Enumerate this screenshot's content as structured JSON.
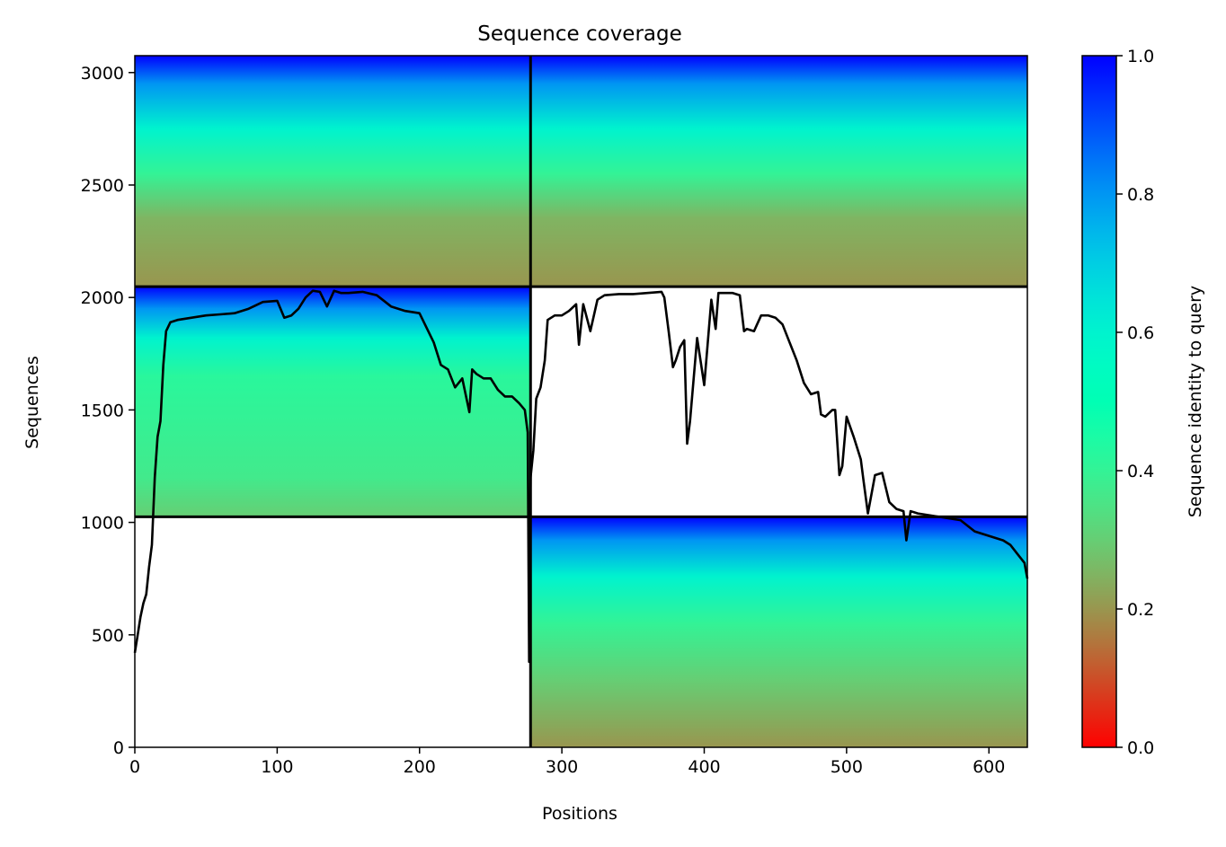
{
  "chart_data": {
    "type": "heatmap",
    "title": "Sequence coverage",
    "xlabel": "Positions",
    "ylabel": "Sequences",
    "xlim": [
      0,
      627
    ],
    "ylim": [
      0,
      3075
    ],
    "xticks": [
      0,
      100,
      200,
      300,
      400,
      500,
      600
    ],
    "yticks": [
      0,
      500,
      1000,
      1500,
      2000,
      2500,
      3000
    ],
    "grid": false,
    "colorbar": {
      "label": "Sequence identity to query",
      "colormap": "rainbow_r",
      "range": [
        0.0,
        1.0
      ],
      "ticks": [
        "0.0",
        "0.2",
        "0.4",
        "0.6",
        "0.8",
        "1.0"
      ]
    },
    "colors": {
      "identity_1.0": "#8000ff",
      "identity_0.8": "#1996f3",
      "identity_0.6": "#4df3ce",
      "identity_0.4": "#b2f396",
      "identity_0.2": "#ff964f",
      "identity_0.0": "#ff0000",
      "coverage_line": "#000000"
    },
    "chain_boundaries": {
      "vertical_at_position": 278,
      "horizontal_at_sequences": [
        1025,
        2048
      ]
    },
    "blocks": [
      {
        "x_range": [
          0,
          278
        ],
        "y_range": [
          1025,
          2048
        ],
        "identity_gradient": [
          {
            "seq": 2048,
            "identity": 1.0
          },
          {
            "seq": 1950,
            "identity": 0.8
          },
          {
            "seq": 1820,
            "identity": 0.6
          },
          {
            "seq": 1650,
            "identity": 0.42
          },
          {
            "seq": 1200,
            "identity": 0.37
          },
          {
            "seq": 1025,
            "identity": 0.3
          }
        ]
      },
      {
        "x_range": [
          278,
          627
        ],
        "y_range": [
          0,
          1025
        ],
        "identity_gradient": [
          {
            "seq": 1025,
            "identity": 1.0
          },
          {
            "seq": 920,
            "identity": 0.8
          },
          {
            "seq": 760,
            "identity": 0.6
          },
          {
            "seq": 550,
            "identity": 0.4
          },
          {
            "seq": 300,
            "identity": 0.3
          },
          {
            "seq": 0,
            "identity": 0.2
          }
        ]
      },
      {
        "x_range": [
          0,
          627
        ],
        "y_range": [
          2048,
          3075
        ],
        "identity_gradient": [
          {
            "seq": 3075,
            "identity": 1.0
          },
          {
            "seq": 2950,
            "identity": 0.8
          },
          {
            "seq": 2750,
            "identity": 0.6
          },
          {
            "seq": 2550,
            "identity": 0.4
          },
          {
            "seq": 2350,
            "identity": 0.25
          },
          {
            "seq": 2048,
            "identity": 0.2
          }
        ]
      }
    ],
    "coverage_line": {
      "x": [
        0,
        2,
        4,
        6,
        8,
        10,
        12,
        14,
        16,
        18,
        20,
        22,
        25,
        30,
        40,
        50,
        60,
        70,
        80,
        90,
        100,
        105,
        110,
        115,
        120,
        125,
        130,
        135,
        140,
        145,
        150,
        160,
        170,
        180,
        190,
        200,
        210,
        215,
        220,
        225,
        230,
        235,
        237,
        240,
        245,
        250,
        255,
        260,
        265,
        270,
        274,
        276,
        277,
        278,
        280,
        282,
        285,
        288,
        290,
        295,
        300,
        305,
        310,
        312,
        315,
        320,
        325,
        330,
        340,
        350,
        360,
        370,
        372,
        375,
        378,
        380,
        383,
        386,
        388,
        390,
        395,
        400,
        405,
        408,
        410,
        415,
        420,
        425,
        428,
        430,
        435,
        440,
        445,
        450,
        455,
        460,
        465,
        470,
        475,
        480,
        482,
        485,
        490,
        492,
        495,
        497,
        500,
        505,
        510,
        512,
        515,
        520,
        525,
        530,
        535,
        540,
        542,
        545,
        550,
        560,
        570,
        580,
        590,
        600,
        610,
        615,
        620,
        625,
        627
      ],
      "y": [
        420,
        500,
        580,
        640,
        680,
        800,
        900,
        1200,
        1380,
        1450,
        1700,
        1850,
        1890,
        1900,
        1910,
        1920,
        1925,
        1930,
        1950,
        1980,
        1985,
        1910,
        1920,
        1950,
        2000,
        2030,
        2025,
        1960,
        2030,
        2020,
        2020,
        2025,
        2010,
        1960,
        1940,
        1930,
        1800,
        1700,
        1680,
        1600,
        1640,
        1490,
        1680,
        1660,
        1640,
        1640,
        1590,
        1560,
        1560,
        1530,
        1500,
        1400,
        380,
        1200,
        1320,
        1550,
        1600,
        1720,
        1900,
        1920,
        1920,
        1940,
        1970,
        1790,
        1970,
        1850,
        1990,
        2010,
        2015,
        2015,
        2020,
        2025,
        2000,
        1850,
        1690,
        1720,
        1780,
        1810,
        1350,
        1450,
        1820,
        1610,
        1990,
        1860,
        2020,
        2020,
        2020,
        2010,
        1850,
        1860,
        1850,
        1920,
        1920,
        1910,
        1880,
        1800,
        1720,
        1620,
        1570,
        1580,
        1480,
        1470,
        1500,
        1500,
        1210,
        1250,
        1470,
        1380,
        1280,
        1180,
        1040,
        1210,
        1220,
        1090,
        1060,
        1050,
        920,
        1050,
        1040,
        1030,
        1020,
        1010,
        960,
        940,
        920,
        900,
        860,
        820,
        750
      ]
    }
  }
}
